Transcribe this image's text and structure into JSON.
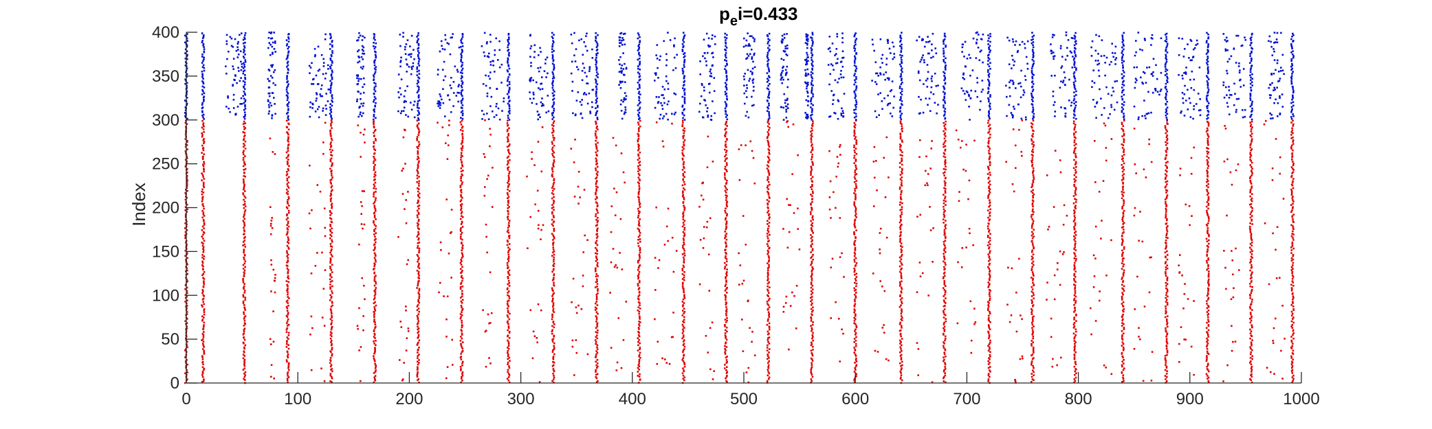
{
  "chart_data": {
    "type": "scatter",
    "title_main": "p",
    "title_sub": "e",
    "title_rest": "i=0.433",
    "xlabel": "",
    "ylabel": "Index",
    "xlim": [
      0,
      1000
    ],
    "ylim": [
      0,
      400
    ],
    "xticks": [
      0,
      100,
      200,
      300,
      400,
      500,
      600,
      700,
      800,
      900,
      1000
    ],
    "yticks": [
      0,
      50,
      100,
      150,
      200,
      250,
      300,
      350,
      400
    ],
    "grid": false,
    "legend": "none",
    "colors": {
      "excitatory": "#e00000",
      "inhibitory": "#0010d0"
    },
    "series": [
      {
        "population": "excitatory",
        "index_range": [
          0,
          300
        ],
        "sync_burst_times": [
          0,
          15,
          52,
          91,
          130,
          169,
          208,
          247,
          289,
          329,
          368,
          406,
          446,
          484,
          522,
          561,
          600,
          641,
          680,
          720,
          759,
          797,
          840,
          879,
          916,
          955,
          992
        ],
        "sparse_spike_bands": [
          [
            75,
            80
          ],
          [
            110,
            125
          ],
          [
            153,
            160
          ],
          [
            190,
            200
          ],
          [
            225,
            240
          ],
          [
            265,
            275
          ],
          [
            305,
            320
          ],
          [
            345,
            360
          ],
          [
            380,
            395
          ],
          [
            420,
            440
          ],
          [
            460,
            475
          ],
          [
            495,
            510
          ],
          [
            535,
            550
          ],
          [
            575,
            590
          ],
          [
            615,
            630
          ],
          [
            655,
            670
          ],
          [
            690,
            710
          ],
          [
            735,
            750
          ],
          [
            770,
            790
          ],
          [
            810,
            830
          ],
          [
            850,
            870
          ],
          [
            890,
            905
          ],
          [
            930,
            945
          ],
          [
            965,
            985
          ]
        ]
      },
      {
        "population": "inhibitory",
        "index_range": [
          300,
          400
        ],
        "sync_burst_times": [
          0,
          15,
          52,
          91,
          130,
          169,
          208,
          247,
          289,
          329,
          368,
          406,
          446,
          484,
          522,
          561,
          600,
          641,
          680,
          720,
          759,
          797,
          840,
          879,
          916,
          955,
          992
        ],
        "dense_spike_bands": [
          [
            35,
            50
          ],
          [
            73,
            80
          ],
          [
            110,
            128
          ],
          [
            153,
            160
          ],
          [
            190,
            205
          ],
          [
            225,
            245
          ],
          [
            265,
            285
          ],
          [
            308,
            325
          ],
          [
            345,
            365
          ],
          [
            388,
            395
          ],
          [
            420,
            440
          ],
          [
            460,
            475
          ],
          [
            500,
            510
          ],
          [
            533,
            540
          ],
          [
            555,
            558
          ],
          [
            575,
            590
          ],
          [
            615,
            635
          ],
          [
            655,
            675
          ],
          [
            695,
            715
          ],
          [
            735,
            755
          ],
          [
            775,
            795
          ],
          [
            810,
            835
          ],
          [
            850,
            875
          ],
          [
            890,
            910
          ],
          [
            930,
            950
          ],
          [
            970,
            985
          ]
        ]
      }
    ]
  }
}
